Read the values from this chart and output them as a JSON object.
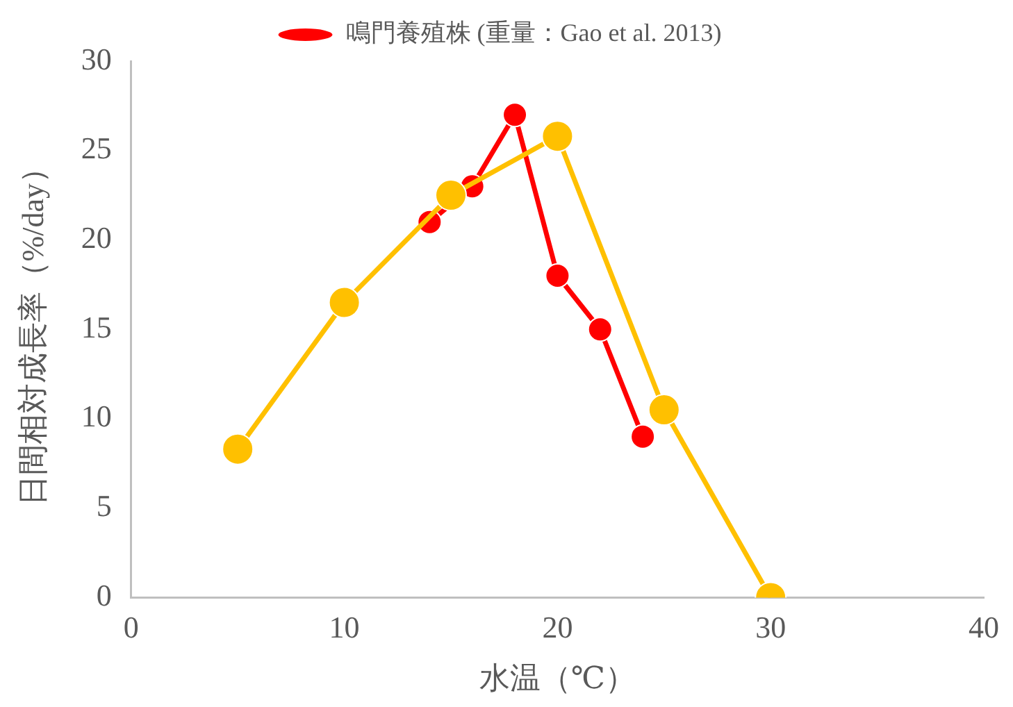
{
  "chart_data": {
    "type": "line",
    "xlabel": "水温（℃）",
    "ylabel": "日間相対成長率（%/day）",
    "xlim": [
      0,
      40
    ],
    "xticks": [
      0,
      10,
      20,
      30,
      40
    ],
    "ylim": [
      0,
      30
    ],
    "yticks": [
      0,
      5,
      10,
      15,
      20,
      25,
      30
    ],
    "grid": false,
    "legend": "top",
    "marker": "circle",
    "line_style": "solid",
    "series": [
      {
        "name": "鳴門養殖株 (重量：Gao et al. 2013)",
        "color": "#ff0000",
        "x": [
          14,
          16,
          18,
          20,
          22,
          24
        ],
        "values": [
          21,
          23,
          27,
          18,
          15,
          9
        ]
      },
      {
        "color": "#ffc000",
        "x": [
          5,
          10,
          15,
          20,
          25,
          30
        ],
        "values": [
          8.3,
          16.5,
          22.5,
          25.8,
          10.5,
          0
        ]
      }
    ]
  }
}
